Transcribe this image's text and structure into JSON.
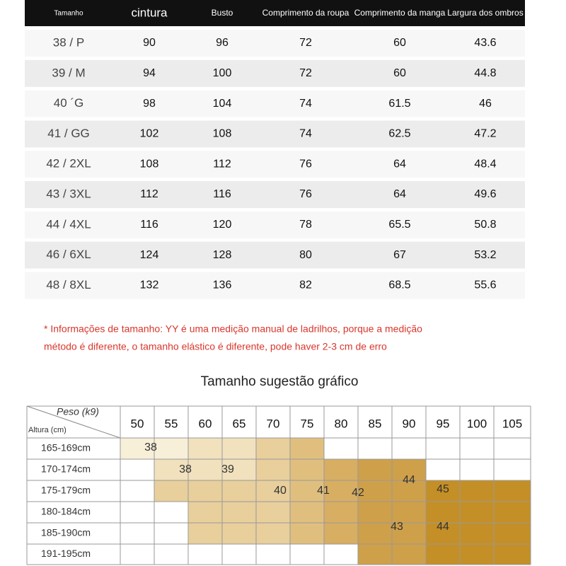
{
  "table": {
    "header": [
      "Tamanho",
      "cintura",
      "Busto",
      "Comprimento da roupa",
      "Comprimento da manga",
      "Largura dos ombros"
    ],
    "rows": [
      [
        "38 / P",
        90,
        96,
        72,
        60,
        43.6
      ],
      [
        "39 / M",
        94,
        100,
        72,
        60,
        44.8
      ],
      [
        "40 ´G",
        98,
        104,
        74,
        61.5,
        46
      ],
      [
        "41 / GG",
        102,
        108,
        74,
        62.5,
        47.2
      ],
      [
        "42 / 2XL",
        108,
        112,
        76,
        64,
        48.4
      ],
      [
        "43 / 3XL",
        112,
        116,
        76,
        64,
        49.6
      ],
      [
        "44 / 4XL",
        116,
        120,
        78,
        65.5,
        50.8
      ],
      [
        "46 / 6XL",
        124,
        128,
        80,
        67,
        53.2
      ],
      [
        "48 / 8XL",
        132,
        136,
        82,
        68.5,
        55.6
      ]
    ]
  },
  "note": [
    "* Informações de tamanho: YY é uma medição manual de ladrilhos, porque a medição",
    "método é diferente, o tamanho elástico é diferente, pode haver 2-3 cm de erro"
  ],
  "chart": {
    "title": "Tamanho sugestão gráfico",
    "corner_weight": "Peso (k9)",
    "corner_height": "Altura (cm)",
    "weights": [
      50,
      55,
      60,
      65,
      70,
      75,
      80,
      85,
      90,
      95,
      100,
      105
    ],
    "heights": [
      "165-169cm",
      "170-174cm",
      "175-179cm",
      "180-184cm",
      "185-190cm",
      "191-195cm"
    ],
    "size_labels": [
      "38",
      "38",
      "39",
      "44",
      "40",
      "41",
      "42",
      "45",
      "43",
      "44"
    ]
  }
}
